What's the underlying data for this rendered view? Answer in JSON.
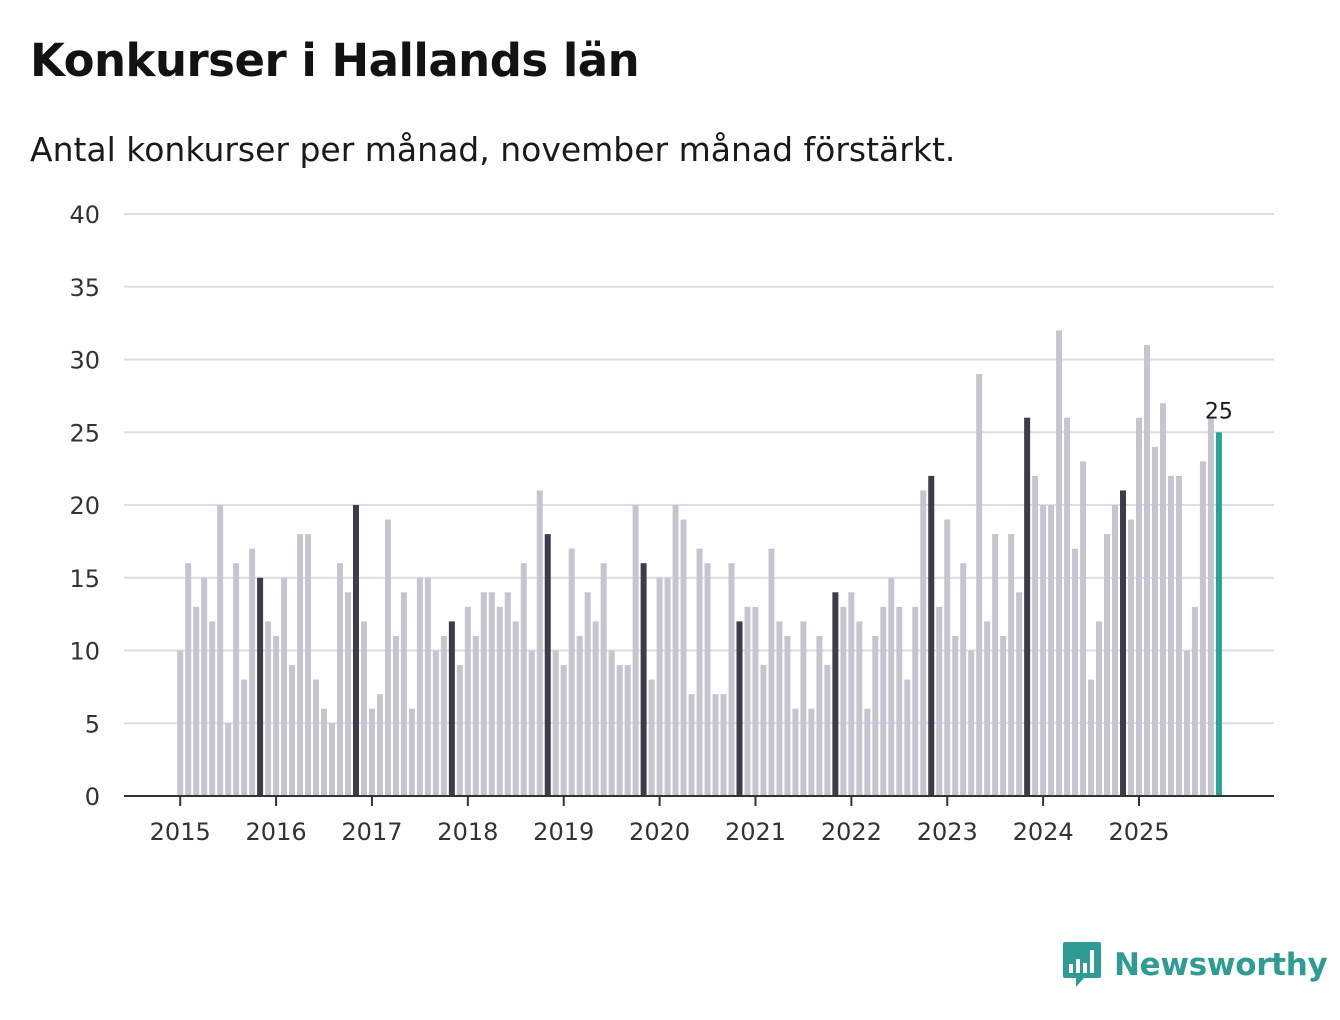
{
  "header": {
    "title": "Konkurser i Hallands län",
    "subtitle": "Antal konkurser per månad, november månad förstärkt."
  },
  "brand": {
    "name": "Newsworthy",
    "icon": "newsworthy-logo-icon",
    "color": "#2e9c93"
  },
  "chart_data": {
    "type": "bar",
    "start": "2015-01",
    "end": "2025-11",
    "values": [
      10,
      16,
      13,
      15,
      12,
      20,
      5,
      16,
      8,
      17,
      15,
      12,
      11,
      15,
      9,
      18,
      18,
      8,
      6,
      5,
      16,
      14,
      20,
      12,
      6,
      7,
      19,
      11,
      14,
      6,
      15,
      15,
      10,
      11,
      12,
      9,
      13,
      11,
      14,
      14,
      13,
      14,
      12,
      16,
      10,
      21,
      18,
      10,
      9,
      17,
      11,
      14,
      12,
      16,
      10,
      9,
      9,
      20,
      16,
      8,
      15,
      15,
      20,
      19,
      7,
      17,
      16,
      7,
      7,
      16,
      12,
      13,
      13,
      9,
      17,
      12,
      11,
      6,
      12,
      6,
      11,
      9,
      14,
      13,
      14,
      12,
      6,
      11,
      13,
      15,
      13,
      8,
      13,
      21,
      22,
      13,
      19,
      11,
      16,
      10,
      29,
      12,
      18,
      11,
      18,
      14,
      26,
      22,
      20,
      20,
      32,
      26,
      17,
      23,
      8,
      12,
      18,
      20,
      21,
      19,
      26,
      31,
      24,
      27,
      22,
      22,
      10,
      13,
      23,
      26,
      25
    ],
    "x_tick_labels": [
      "2015",
      "2016",
      "2017",
      "2018",
      "2019",
      "2020",
      "2021",
      "2022",
      "2023",
      "2024",
      "2025"
    ],
    "y_ticks": [
      0,
      5,
      10,
      15,
      20,
      25,
      30,
      35,
      40
    ],
    "ylim": [
      0,
      40
    ],
    "grid": true,
    "highlight": "november",
    "latest_label": "25",
    "colors": {
      "regular": "#c5c4d0",
      "november": "#3d3c4a",
      "latest": "#2aa394",
      "grid": "#dedde3",
      "axis": "#333333"
    }
  }
}
